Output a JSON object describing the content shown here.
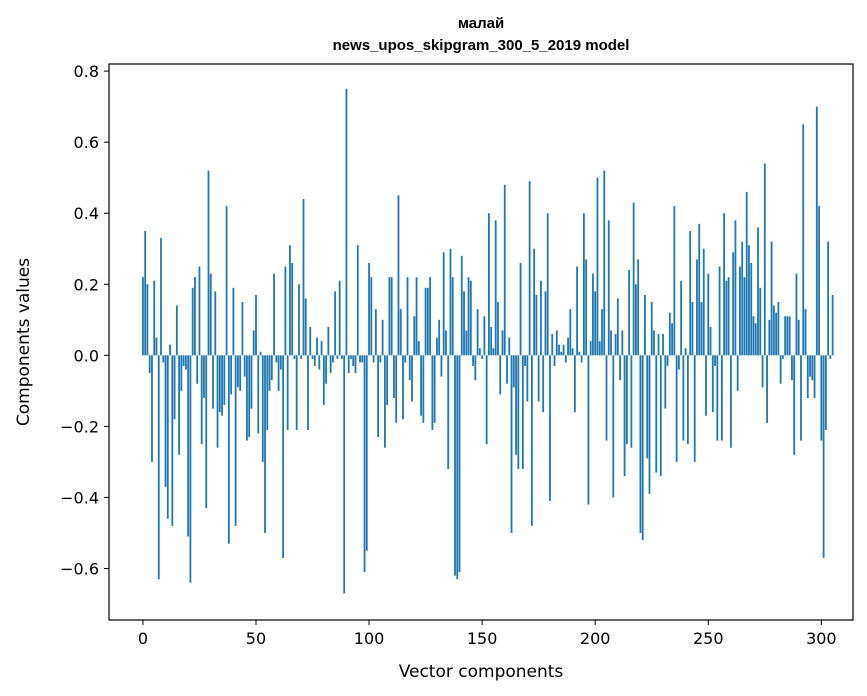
{
  "chart_data": {
    "type": "bar",
    "title": "малай",
    "subtitle": "news_upos_skipgram_300_5_2019 model",
    "xlabel": "Vector components",
    "ylabel": "Components values",
    "xlim": [
      -15,
      314
    ],
    "ylim": [
      -0.745,
      0.82
    ],
    "xticks": [
      0,
      50,
      100,
      150,
      200,
      250,
      300
    ],
    "yticks": [
      -0.6,
      -0.4,
      -0.2,
      0.0,
      0.2,
      0.4,
      0.6,
      0.8
    ],
    "ytick_labels": [
      "−0.6",
      "−0.4",
      "−0.2",
      "0.0",
      "0.2",
      "0.4",
      "0.6",
      "0.8"
    ],
    "xtick_labels": [
      "0",
      "50",
      "100",
      "150",
      "200",
      "250",
      "300"
    ],
    "bar_color": "#1f77b4",
    "values": [
      0.22,
      0.35,
      0.2,
      -0.05,
      -0.3,
      0.21,
      0.05,
      -0.63,
      0.33,
      -0.02,
      -0.37,
      -0.46,
      0.03,
      -0.48,
      -0.18,
      0.14,
      -0.28,
      -0.1,
      -0.03,
      -0.04,
      -0.51,
      -0.64,
      0.19,
      0.22,
      -0.08,
      0.25,
      -0.25,
      -0.12,
      -0.43,
      0.52,
      0.23,
      -0.15,
      0.18,
      -0.26,
      -0.16,
      -0.17,
      -0.14,
      0.42,
      -0.53,
      -0.11,
      0.19,
      -0.48,
      -0.09,
      -0.1,
      0.15,
      -0.06,
      -0.24,
      -0.23,
      -0.15,
      0.07,
      0.17,
      -0.22,
      0.01,
      -0.3,
      -0.5,
      -0.21,
      -0.1,
      -0.07,
      0.23,
      -0.02,
      -0.1,
      -0.04,
      -0.57,
      0.25,
      -0.21,
      0.31,
      0.26,
      -0.01,
      -0.21,
      0.2,
      -0.01,
      0.44,
      0.16,
      -0.21,
      0.08,
      -0.01,
      -0.03,
      0.05,
      -0.04,
      0.04,
      -0.14,
      -0.08,
      0.08,
      -0.05,
      -0.02,
      0.18,
      -0.01,
      0.21,
      -0.01,
      -0.67,
      0.75,
      -0.05,
      -0.01,
      -0.03,
      -0.05,
      0.31,
      -0.02,
      -0.02,
      -0.61,
      -0.55,
      0.26,
      0.22,
      -0.02,
      0.13,
      -0.23,
      -0.02,
      0.1,
      -0.26,
      -0.14,
      0.22,
      0.22,
      -0.12,
      -0.19,
      0.45,
      0.13,
      -0.18,
      -0.02,
      0.22,
      -0.07,
      -0.13,
      0.11,
      0.22,
      0.04,
      -0.17,
      -0.19,
      0.19,
      0.19,
      0.22,
      -0.21,
      -0.19,
      0.05,
      0.1,
      -0.06,
      0.29,
      0.07,
      -0.32,
      0.3,
      0.22,
      -0.62,
      -0.63,
      -0.61,
      0.28,
      0.18,
      0.07,
      0.22,
      0.21,
      -0.03,
      -0.07,
      0.13,
      0.02,
      -0.01,
      0.11,
      -0.25,
      0.4,
      0.08,
      0.02,
      0.38,
      0.15,
      -0.11,
      0.07,
      0.48,
      -0.08,
      0.05,
      -0.5,
      -0.09,
      -0.28,
      -0.32,
      0.26,
      -0.32,
      -0.03,
      -0.13,
      0.49,
      -0.48,
      0.3,
      0.17,
      -0.13,
      0.21,
      -0.16,
      0.18,
      0.4,
      -0.41,
      0.06,
      -0.03,
      0.07,
      0.03,
      0.01,
      0.03,
      -0.02,
      0.05,
      0.13,
      0.02,
      -0.16,
      0.25,
      0.01,
      -0.02,
      0.4,
      0.27,
      -0.42,
      0.04,
      0.23,
      0.18,
      0.5,
      0.04,
      0.13,
      0.52,
      -0.24,
      0.38,
      0.07,
      -0.4,
      0.06,
      0.16,
      -0.07,
      0.07,
      -0.34,
      -0.25,
      0.24,
      -0.26,
      0.43,
      0.2,
      0.27,
      -0.5,
      -0.52,
      0.17,
      -0.29,
      -0.39,
      0.15,
      0.07,
      -0.33,
      0.06,
      -0.34,
      0.06,
      -0.15,
      -0.03,
      0.12,
      0.09,
      0.42,
      -0.3,
      -0.04,
      0.21,
      -0.24,
      0.02,
      -0.25,
      0.35,
      0.15,
      -0.3,
      0.27,
      0.37,
      0.15,
      0.3,
      -0.17,
      0.23,
      0.08,
      -0.16,
      -0.03,
      -0.24,
      0.25,
      -0.24,
      0.4,
      0.21,
      0.22,
      -0.26,
      0.29,
      0.38,
      -0.1,
      0.25,
      0.32,
      0.22,
      0.46,
      0.31,
      0.26,
      0.11,
      0.09,
      0.36,
      0.19,
      -0.09,
      0.54,
      -0.19,
      0.1,
      0.32,
      0.14,
      0.12,
      0.15,
      -0.08,
      -0.01,
      0.11,
      0.11,
      0.11,
      -0.07,
      -0.28,
      0.23,
      0.1,
      -0.24,
      0.65,
      0.13,
      -0.12,
      -0.06,
      -0.07,
      -0.12,
      0.7,
      0.42,
      -0.24,
      -0.57,
      -0.21,
      0.32,
      -0.01,
      0.17
    ]
  }
}
